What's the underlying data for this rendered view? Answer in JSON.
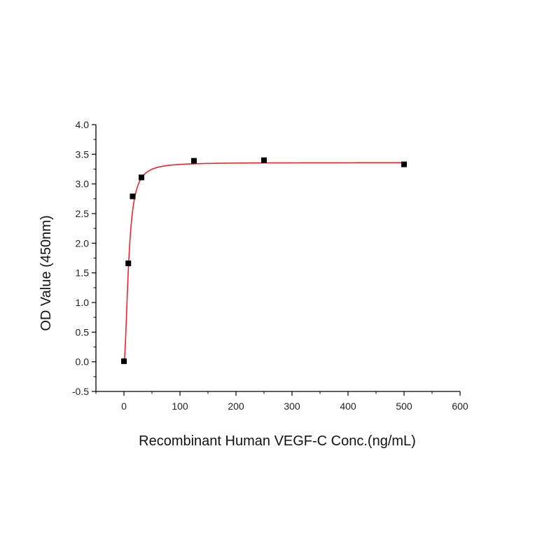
{
  "chart_data": {
    "type": "scatter",
    "title": "",
    "xlabel": "Recombinant Human VEGF-C Conc.(ng/mL)",
    "ylabel": "OD Value (450nm)",
    "xlim": [
      -50,
      600
    ],
    "ylim": [
      -0.5,
      4.0
    ],
    "xticks": [
      "0",
      "100",
      "200",
      "300",
      "400",
      "500",
      "600"
    ],
    "yticks": [
      "-0.5",
      "0.0",
      "0.5",
      "1.0",
      "1.5",
      "2.0",
      "2.5",
      "3.0",
      "3.5",
      "4.0"
    ],
    "grid": false,
    "legend": "none",
    "series": [
      {
        "kind": "points",
        "marker": "square",
        "color": "#000000",
        "x": [
          0,
          7.8,
          15.6,
          31.25,
          125,
          250,
          500
        ],
        "y": [
          0.01,
          1.66,
          2.79,
          3.11,
          3.39,
          3.4,
          3.33
        ]
      },
      {
        "kind": "fit-curve",
        "color": "#e8262c",
        "model": "4PL",
        "bottom": 0.0,
        "top": 3.36,
        "ec50": 8.5,
        "hill": 1.9
      }
    ]
  }
}
